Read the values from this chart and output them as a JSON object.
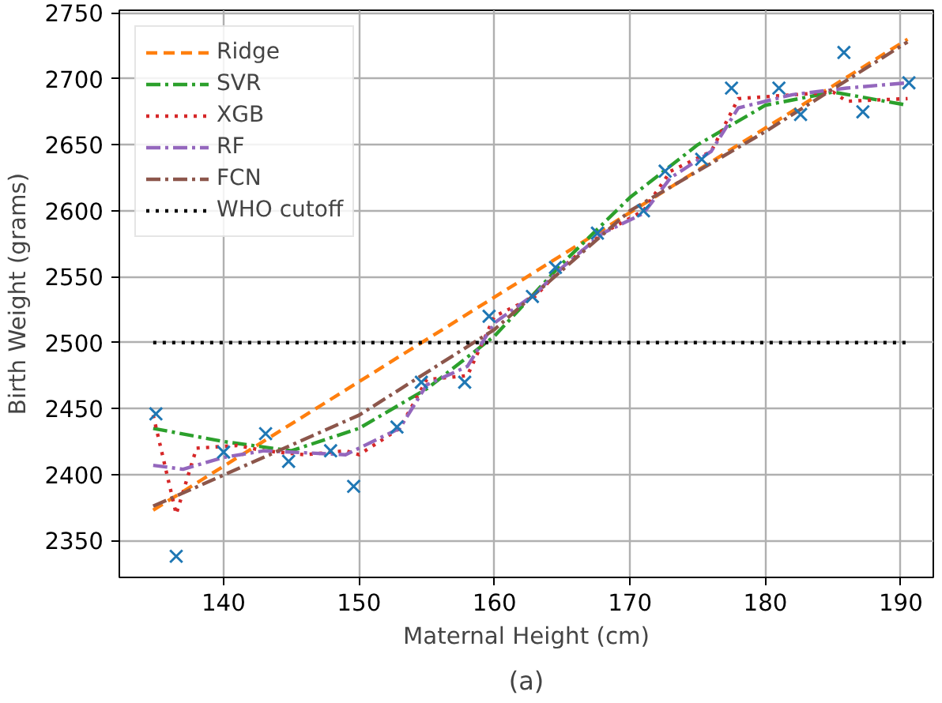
{
  "chart_data": {
    "type": "line",
    "xlabel": "Maternal Height (cm)",
    "ylabel": "Birth Weight (grams)",
    "xlim": [
      132.3,
      192.4
    ],
    "ylim": [
      2322,
      2752
    ],
    "xticks": [
      140,
      150,
      160,
      170,
      180,
      190
    ],
    "yticks": [
      2350,
      2400,
      2450,
      2500,
      2550,
      2600,
      2650,
      2700,
      2750
    ],
    "grid": true,
    "legend": "top left",
    "annotations": [
      "(a)"
    ],
    "series": [
      {
        "name": "Ridge",
        "color": "#ff7f0e",
        "line_style": "dashed",
        "x": [
          134.8,
          190.5
        ],
        "values": [
          2373,
          2730
        ]
      },
      {
        "name": "SVR",
        "color": "#2ca02c",
        "line_style": "dashdot",
        "x": [
          134.8,
          140,
          145,
          150,
          155,
          160,
          165,
          170,
          175,
          180,
          185,
          190.5
        ],
        "values": [
          2435,
          2425,
          2418,
          2435,
          2465,
          2505,
          2560,
          2610,
          2650,
          2680,
          2690,
          2680
        ]
      },
      {
        "name": "XGB",
        "color": "#d62728",
        "line_style": "dotted",
        "x": [
          134.8,
          136.5,
          138,
          141,
          143,
          146,
          149,
          150,
          153,
          155,
          158,
          160,
          163,
          165,
          168,
          171,
          173,
          176,
          178,
          185,
          186,
          190.5
        ],
        "values": [
          2445,
          2370,
          2420,
          2422,
          2418,
          2415,
          2418,
          2415,
          2435,
          2472,
          2475,
          2520,
          2535,
          2557,
          2583,
          2600,
          2630,
          2645,
          2685,
          2690,
          2683,
          2685
        ]
      },
      {
        "name": "RF",
        "color": "#9467bd",
        "line_style": "dashdot",
        "x": [
          134.8,
          137,
          140,
          143,
          149,
          153,
          155,
          158,
          160,
          163,
          165,
          168,
          171,
          173,
          176,
          178,
          182,
          186,
          190.5
        ],
        "values": [
          2407,
          2404,
          2413,
          2418,
          2415,
          2435,
          2468,
          2482,
          2515,
          2537,
          2557,
          2583,
          2598,
          2625,
          2645,
          2678,
          2688,
          2693,
          2697
        ]
      },
      {
        "name": "FCN",
        "color": "#8c564b",
        "line_style": "dashdot",
        "x": [
          134.8,
          150,
          160,
          170,
          180,
          190.5
        ],
        "values": [
          2376,
          2445,
          2510,
          2600,
          2660,
          2728
        ]
      },
      {
        "name": "WHO cutoff",
        "color": "#000000",
        "line_style": "dotted",
        "x": [
          134.8,
          190.5
        ],
        "values": [
          2500,
          2500
        ]
      },
      {
        "type": "scatter",
        "marker": "cross",
        "color": "#1f77b4",
        "x": [
          135,
          136.5,
          140,
          143.1,
          144.8,
          147.9,
          149.6,
          152.8,
          154.6,
          157.8,
          159.6,
          162.8,
          164.5,
          167.6,
          171,
          172.6,
          175.3,
          177.5,
          181,
          182.6,
          185.8,
          187.2,
          190.6
        ],
        "values": [
          2446,
          2338,
          2417,
          2431,
          2410,
          2418,
          2391,
          2436,
          2470,
          2470,
          2520,
          2535,
          2557,
          2583,
          2600,
          2630,
          2639,
          2693,
          2693,
          2673,
          2720,
          2675,
          2697
        ]
      }
    ]
  }
}
